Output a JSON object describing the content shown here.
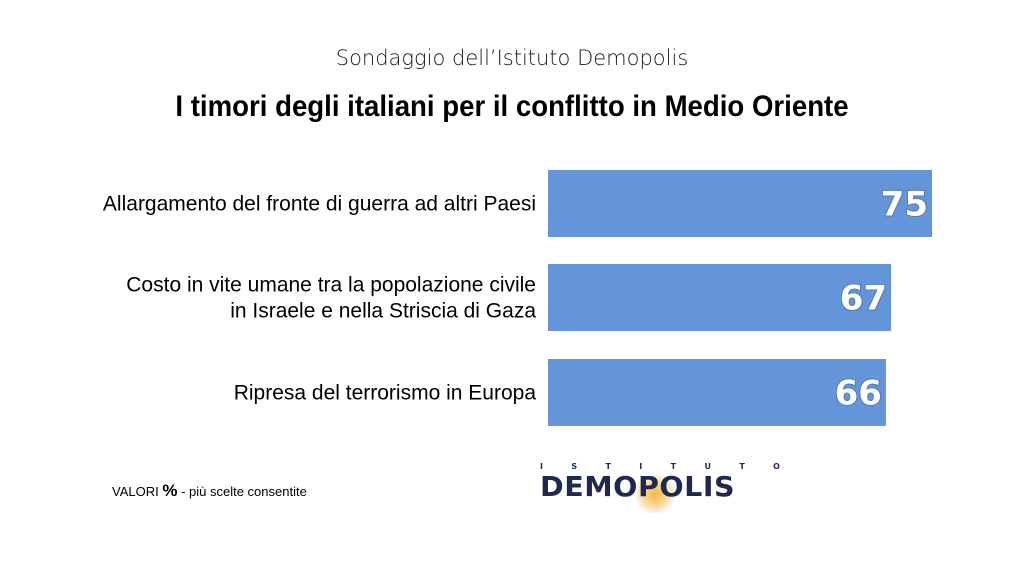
{
  "header": {
    "subtitle": "Sondaggio dell’Istituto Demopolis",
    "title": "I timori degli italiani per il conflitto in Medio Oriente"
  },
  "chart_data": {
    "type": "bar",
    "orientation": "horizontal",
    "categories": [
      [
        "Allargamento del fronte di guerra ad altri Paesi"
      ],
      [
        "Costo in vite umane tra la popolazione civile",
        "in Israele e nella Striscia di Gaza"
      ],
      [
        "Ripresa del terrorismo in Europa"
      ]
    ],
    "values": [
      75,
      67,
      66
    ],
    "value_labels": [
      "75",
      "67",
      "66"
    ],
    "bar_color": "#6495d8",
    "xlim": [
      0,
      75
    ],
    "grid": false,
    "legend": "none"
  },
  "footnote": {
    "prefix": "VALORI ",
    "percent": "%",
    "suffix": " - più scelte consentite"
  },
  "logo": {
    "top_letters": [
      "I",
      "S",
      "T",
      "I",
      "T",
      "U",
      "T",
      "O"
    ],
    "name": "DEMOPOLIS",
    "text_color": "#1f2850",
    "glow_color": "#f5b43c"
  }
}
